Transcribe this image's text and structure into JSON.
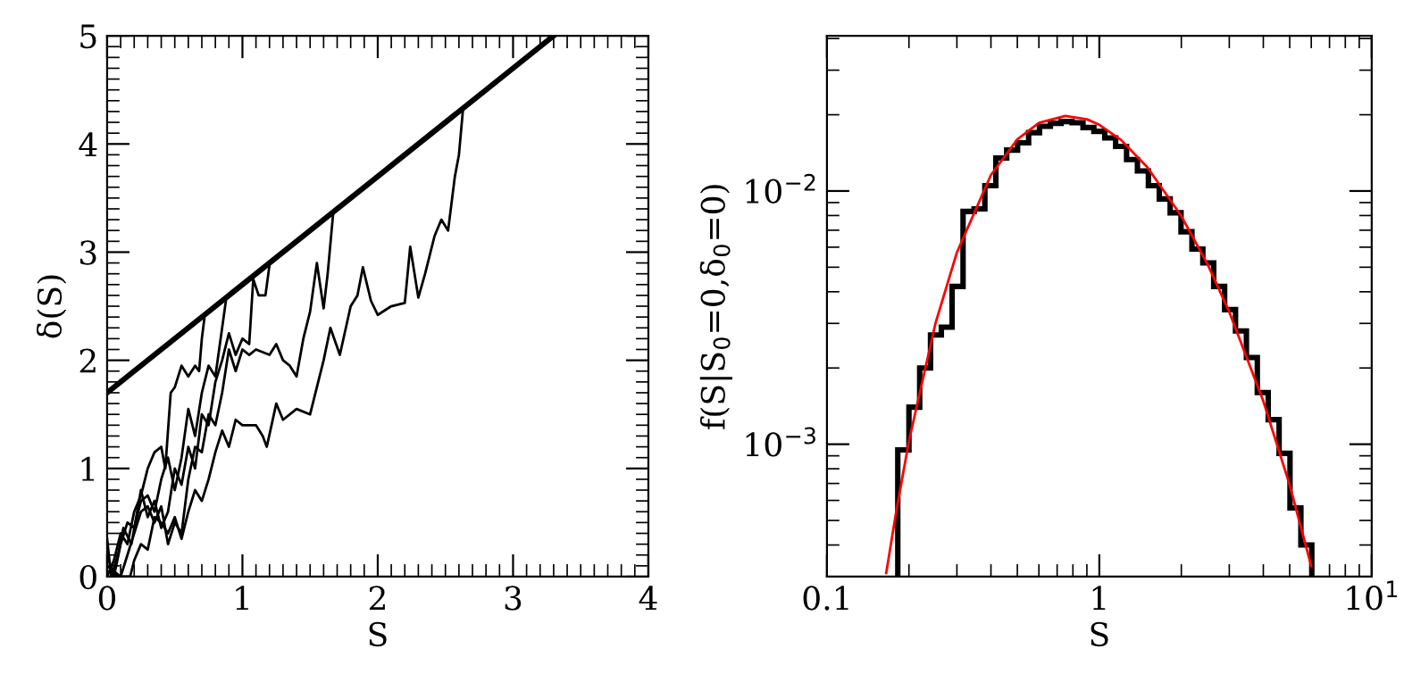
{
  "chart_data": [
    {
      "type": "line",
      "xlabel": "S",
      "ylabel": "δ(S)",
      "xlim": [
        0,
        4
      ],
      "ylim": [
        0,
        5
      ],
      "xticks": [
        0,
        1,
        2,
        3,
        4
      ],
      "yticks": [
        0,
        1,
        2,
        3,
        4,
        5
      ],
      "grid": false,
      "legend": false,
      "series": [
        {
          "color": "#000000",
          "x": [
            0,
            3.3
          ],
          "values": [
            1.7,
            5.0
          ]
        },
        {
          "color": "#000000",
          "x": [
            0,
            0.05,
            0.1,
            0.15,
            0.2,
            0.25,
            0.3,
            0.35,
            0.4,
            0.43,
            0.47,
            0.5,
            0.55,
            0.6,
            0.65,
            0.68,
            0.7,
            0.72
          ],
          "values": [
            0,
            0.15,
            0.4,
            0.3,
            0.6,
            0.75,
            1.0,
            1.15,
            1.2,
            1.0,
            1.7,
            1.75,
            1.95,
            1.85,
            1.95,
            1.9,
            2.2,
            2.4
          ]
        },
        {
          "color": "#000000",
          "x": [
            0,
            0.05,
            0.1,
            0.15,
            0.2,
            0.25,
            0.3,
            0.35,
            0.4,
            0.45,
            0.5,
            0.55,
            0.6,
            0.65,
            0.7,
            0.75,
            0.8,
            0.85,
            0.88
          ],
          "values": [
            0.2,
            0.0,
            0.3,
            0.5,
            0.45,
            0.7,
            0.75,
            0.6,
            0.9,
            1.1,
            0.8,
            1.1,
            1.55,
            1.3,
            1.7,
            1.95,
            1.85,
            2.3,
            2.57
          ]
        },
        {
          "color": "#000000",
          "x": [
            0,
            0.03,
            0.08,
            0.12,
            0.18,
            0.25,
            0.3,
            0.35,
            0.4,
            0.45,
            0.5,
            0.55,
            0.6,
            0.65,
            0.7,
            0.75,
            0.8,
            0.85,
            0.9,
            0.95,
            1.0,
            1.05,
            1.08,
            1.12,
            1.17,
            1.2
          ],
          "values": [
            0.35,
            0.0,
            0.2,
            0.45,
            0.3,
            0.8,
            0.55,
            0.7,
            0.45,
            0.6,
            1.0,
            0.85,
            1.2,
            1.0,
            1.5,
            1.4,
            1.8,
            2.0,
            2.25,
            2.05,
            2.2,
            2.15,
            2.75,
            2.6,
            2.6,
            2.88
          ]
        },
        {
          "color": "#000000",
          "x": [
            0,
            0.05,
            0.1,
            0.15,
            0.2,
            0.25,
            0.3,
            0.35,
            0.4,
            0.45,
            0.5,
            0.55,
            0.6,
            0.65,
            0.7,
            0.75,
            0.8,
            0.85,
            0.9,
            0.95,
            1.0,
            1.05,
            1.1,
            1.2,
            1.25,
            1.3,
            1.35,
            1.4,
            1.45,
            1.5,
            1.55,
            1.6,
            1.63,
            1.67
          ],
          "values": [
            0.1,
            0.05,
            0.0,
            0.2,
            0.4,
            0.6,
            0.65,
            0.5,
            0.65,
            0.3,
            0.5,
            0.4,
            0.9,
            1.2,
            1.15,
            1.5,
            1.4,
            1.7,
            2.1,
            1.9,
            2.1,
            2.05,
            2.1,
            2.05,
            2.15,
            2.0,
            1.95,
            1.85,
            2.2,
            2.45,
            2.9,
            2.48,
            2.8,
            3.35
          ]
        },
        {
          "color": "#000000",
          "x": [
            0,
            0.1,
            0.17,
            0.2,
            0.25,
            0.3,
            0.35,
            0.4,
            0.45,
            0.5,
            0.55,
            0.6,
            0.65,
            0.7,
            0.75,
            0.8,
            0.85,
            0.9,
            0.95,
            1.0,
            1.1,
            1.15,
            1.18,
            1.25,
            1.3,
            1.4,
            1.5,
            1.6,
            1.65,
            1.72,
            1.8,
            1.85,
            1.89,
            1.95,
            2.0,
            2.1,
            2.2,
            2.24,
            2.3,
            2.35,
            2.42,
            2.47,
            2.52,
            2.57,
            2.6,
            2.63
          ],
          "values": [
            0.05,
            0.0,
            0.0,
            0.15,
            0.3,
            0.25,
            0.55,
            0.5,
            0.4,
            0.55,
            0.35,
            0.6,
            0.8,
            0.7,
            0.9,
            1.15,
            1.35,
            1.2,
            1.45,
            1.4,
            1.4,
            1.3,
            1.2,
            1.6,
            1.45,
            1.55,
            1.5,
            2.0,
            2.3,
            2.05,
            2.5,
            2.6,
            2.86,
            2.55,
            2.42,
            2.5,
            2.53,
            3.05,
            2.58,
            2.8,
            3.15,
            3.3,
            3.2,
            3.7,
            3.9,
            4.32
          ]
        }
      ]
    },
    {
      "type": "histogram",
      "xlabel": "S",
      "ylabel": "f(S|S$_{0}$=0,δ$_{0}$=0)",
      "log": "xy",
      "xlim": [
        0.1,
        10
      ],
      "ylim": [
        0.0003,
        0.041
      ],
      "xticks": [
        0.1,
        1,
        {
          "value": 10,
          "label": "10$^{1}$"
        }
      ],
      "yticks": [
        {
          "value": 0.001,
          "label": "10$^{−3}$"
        },
        {
          "value": 0.01,
          "label": "10$^{−2}$"
        }
      ],
      "grid": false,
      "legend": false,
      "color": "#000000",
      "bins": [
        0.182,
        0.2,
        0.219,
        0.24,
        0.263,
        0.288,
        0.316,
        0.347,
        0.38,
        0.417,
        0.457,
        0.501,
        0.55,
        0.603,
        0.661,
        0.724,
        0.794,
        0.871,
        0.955,
        1.047,
        1.148,
        1.259,
        1.38,
        1.514,
        1.66,
        1.82,
        1.995,
        2.188,
        2.399,
        2.63,
        2.884,
        3.162,
        3.467,
        3.802,
        4.169,
        4.571,
        5.012,
        5.495,
        6.026
      ],
      "values": [
        0.00095,
        0.0014,
        0.002,
        0.0027,
        0.0029,
        0.0042,
        0.0083,
        0.0085,
        0.0105,
        0.0135,
        0.0145,
        0.0155,
        0.017,
        0.018,
        0.0185,
        0.0188,
        0.0186,
        0.0178,
        0.0172,
        0.0162,
        0.015,
        0.0133,
        0.012,
        0.0105,
        0.0093,
        0.0082,
        0.0069,
        0.0059,
        0.0052,
        0.0042,
        0.0034,
        0.0028,
        0.0022,
        0.0016,
        0.00125,
        0.00092,
        0.00056,
        0.0004
      ],
      "series": [
        {
          "type": "line",
          "color": "#ff0000",
          "x": [
            0.165,
            0.18,
            0.2,
            0.25,
            0.3,
            0.4,
            0.5,
            0.6,
            0.75,
            0.9,
            1.0,
            1.2,
            1.5,
            2,
            2.5,
            3,
            4,
            5,
            6
          ],
          "values": [
            0.00031,
            0.00055,
            0.00103,
            0.00299,
            0.00572,
            0.01157,
            0.01598,
            0.01858,
            0.0198,
            0.01919,
            0.01825,
            0.01592,
            0.01242,
            0.00796,
            0.00512,
            0.00333,
            0.00148,
            0.00069,
            0.00033
          ]
        }
      ]
    }
  ]
}
